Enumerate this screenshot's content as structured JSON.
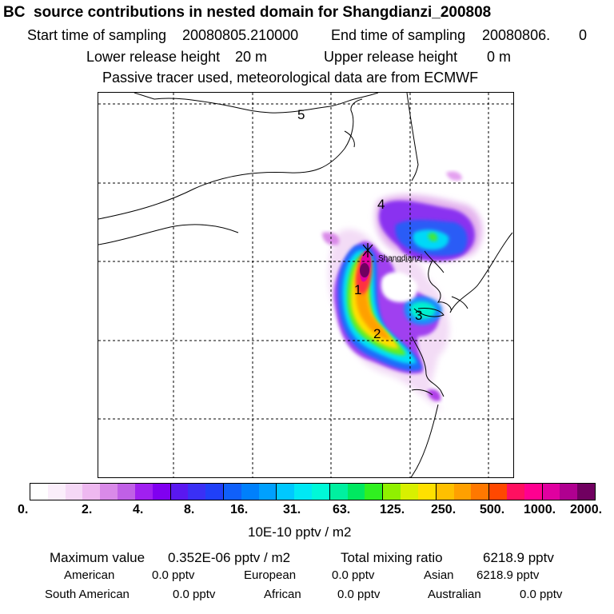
{
  "title": "BC  source contributions in nested domain for Shangdianzi_200808",
  "header": {
    "start_label": "Start time of sampling",
    "start_value": "20080805.210000",
    "end_label": "End time of sampling",
    "end_value": "20080806.",
    "end_suffix": "0",
    "lower_label": "Lower release height",
    "lower_value": "20 m",
    "upper_label": "Upper release height",
    "upper_value": "0 m",
    "note": "Passive tracer used, meteorological data are from ECMWF"
  },
  "map": {
    "region_labels": [
      "1",
      "2",
      "3",
      "4",
      "5"
    ],
    "receptor_marker": "Shangdianzi"
  },
  "colorbar": {
    "colors": [
      "#ffffff",
      "#fbeefb",
      "#f5d8f6",
      "#eeb8f0",
      "#d98ae8",
      "#c060e6",
      "#a020f0",
      "#8000f0",
      "#5a18f0",
      "#3a30f5",
      "#2040f8",
      "#1060fa",
      "#0080fc",
      "#00a0fe",
      "#00c8ff",
      "#00e8f4",
      "#00f8d8",
      "#00f0a0",
      "#00e860",
      "#30f020",
      "#90f000",
      "#d8f000",
      "#ffe000",
      "#ffc000",
      "#ffa000",
      "#ff7800",
      "#ff4800",
      "#ff1060",
      "#ff0090",
      "#e000a0",
      "#b00090",
      "#700060"
    ],
    "ticks": [
      "0.",
      "2.",
      "4.",
      "8.",
      "16.",
      "31.",
      "63.",
      "125.",
      "250.",
      "500.",
      "1000.",
      "2000."
    ],
    "units": "10E-10 pptv / m2"
  },
  "summary": {
    "max_label": "Maximum value",
    "max_value": "0.352E-06 pptv / m2",
    "total_label": "Total mixing ratio",
    "total_value": "6218.9 pptv",
    "regions": [
      {
        "name": "American",
        "value": "0.0 pptv"
      },
      {
        "name": "European",
        "value": "0.0 pptv"
      },
      {
        "name": "Asian",
        "value": "6218.9 pptv"
      },
      {
        "name": "South American",
        "value": "0.0 pptv"
      },
      {
        "name": "African",
        "value": "0.0 pptv"
      },
      {
        "name": "Australian",
        "value": "0.0 pptv"
      }
    ]
  }
}
